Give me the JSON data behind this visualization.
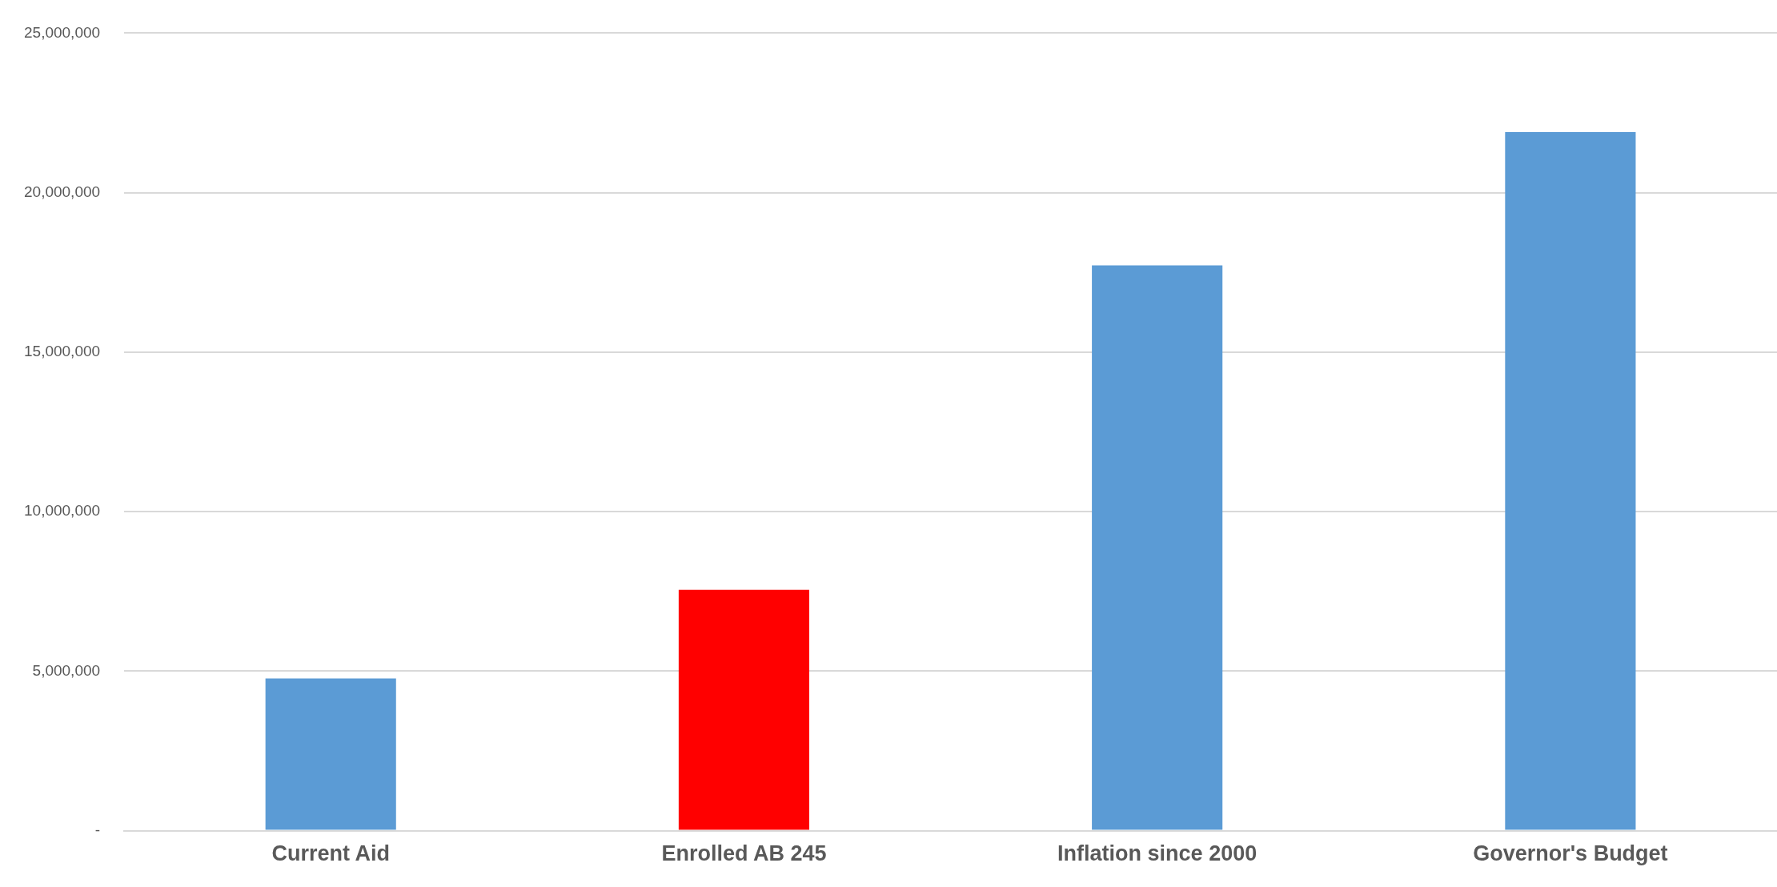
{
  "chart_data": {
    "type": "bar",
    "categories": [
      "Current Aid",
      "Enrolled AB 245",
      "Inflation since 2000",
      "Governor's Budget"
    ],
    "values": [
      4770000,
      7550000,
      17720000,
      21900000
    ],
    "colors": [
      "#5b9bd5",
      "#ff0000",
      "#5b9bd5",
      "#5b9bd5"
    ],
    "ylim": [
      0,
      25000000
    ],
    "yticks": [
      {
        "value": 0,
        "label": "-"
      },
      {
        "value": 5000000,
        "label": "5,000,000"
      },
      {
        "value": 10000000,
        "label": "10,000,000"
      },
      {
        "value": 15000000,
        "label": "15,000,000"
      },
      {
        "value": 20000000,
        "label": "20,000,000"
      },
      {
        "value": 25000000,
        "label": "25,000,000"
      }
    ],
    "grid": "y",
    "legend": false
  }
}
